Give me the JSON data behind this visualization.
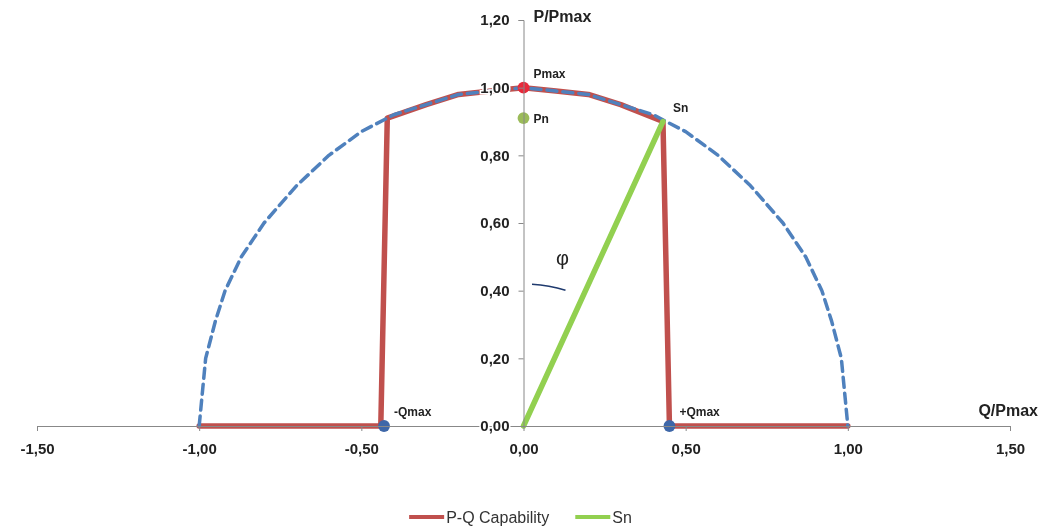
{
  "chart_data": {
    "type": "line",
    "xlabel": "Q/Pmax",
    "ylabel": "P/Pmax",
    "xlim": [
      -1.5,
      1.5
    ],
    "ylim": [
      0,
      1.2
    ],
    "xticks": [
      {
        "value": -1.5,
        "label": "-1,50"
      },
      {
        "value": -1,
        "label": "-1,00"
      },
      {
        "value": -0.5,
        "label": "-0,50"
      },
      {
        "value": 0,
        "label": "0,00"
      },
      {
        "value": 0.5,
        "label": "0,50"
      },
      {
        "value": 1,
        "label": "1,00"
      },
      {
        "value": 1.5,
        "label": "1,50"
      }
    ],
    "yticks": [
      {
        "value": 0,
        "label": "0,00"
      },
      {
        "value": 0.2,
        "label": "0,20"
      },
      {
        "value": 0.4,
        "label": "0,40"
      },
      {
        "value": 0.6,
        "label": "0,60"
      },
      {
        "value": 0.8,
        "label": "0,80"
      },
      {
        "value": 1,
        "label": "1,00"
      },
      {
        "value": 1.2,
        "label": "1,20"
      }
    ],
    "grid": false,
    "legend": "bottom",
    "series": [
      {
        "name": "P-Q Capability",
        "line_style": "solid",
        "marker": "none",
        "color": "#c0504d",
        "x": [
          1,
          0.45,
          0.43,
          0.3,
          0.2,
          0.1,
          0,
          -0.1,
          -0.2,
          -0.3,
          -0.42,
          -0.44,
          -1
        ],
        "values": [
          0,
          0,
          0.9,
          0.95,
          0.98,
          0.99,
          1,
          0.99,
          0.98,
          0.95,
          0.91,
          0,
          0
        ]
      },
      {
        "line_style": "dashed",
        "marker": "none",
        "color": "#4f81bd",
        "x": [
          -1,
          -0.99,
          -0.98,
          -0.95,
          -0.92,
          -0.87,
          -0.8,
          -0.7,
          -0.6,
          -0.5,
          -0.4,
          -0.3,
          -0.2,
          -0.1,
          0,
          0.1,
          0.2,
          0.3,
          0.4,
          0.5,
          0.6,
          0.7,
          0.8,
          0.87,
          0.92,
          0.95,
          0.98,
          0.99,
          1
        ],
        "values": [
          0,
          0.1,
          0.2,
          0.31,
          0.4,
          0.5,
          0.6,
          0.71,
          0.8,
          0.87,
          0.92,
          0.95,
          0.98,
          0.99,
          1,
          0.99,
          0.98,
          0.95,
          0.92,
          0.87,
          0.8,
          0.71,
          0.6,
          0.5,
          0.4,
          0.31,
          0.2,
          0.1,
          0
        ]
      },
      {
        "name": "Sn",
        "line_style": "solid",
        "marker": "none",
        "color": "#92d050",
        "x": [
          0,
          0.43
        ],
        "values": [
          0,
          0.9
        ]
      },
      {
        "type": "scatter",
        "marker": "circle",
        "color": "#e8293a",
        "x": [
          0
        ],
        "values": [
          1
        ]
      },
      {
        "type": "scatter",
        "marker": "circle",
        "color": "#9bbb59",
        "x": [
          0
        ],
        "values": [
          0.91
        ]
      },
      {
        "type": "scatter",
        "marker": "circle",
        "color": "#3e67a8",
        "x": [
          -0.43,
          0.45
        ],
        "values": [
          0,
          0
        ]
      }
    ],
    "annotations": [
      {
        "text": "Pmax",
        "x": 0,
        "y": 1
      },
      {
        "text": "Pn",
        "x": 0,
        "y": 0.91
      },
      {
        "text": "Sn",
        "x": 0.43,
        "y": 0.9
      },
      {
        "text": "-Qmax",
        "x": -0.43,
        "y": 0
      },
      {
        "text": "+Qmax",
        "x": 0.45,
        "y": 0
      },
      "φ"
    ]
  }
}
